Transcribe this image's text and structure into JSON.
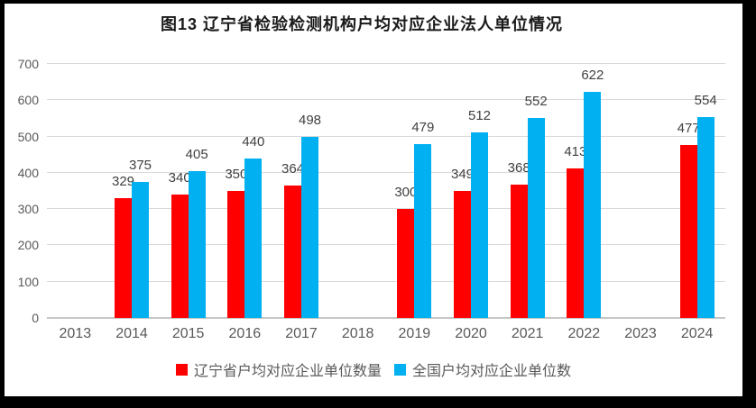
{
  "title": "图13 辽宁省检验检测机构户均对应企业法人单位情况",
  "colors": {
    "liaoning_bar": "#FF0000",
    "national_bar": "#00B0F0",
    "gridline": "#D9D9D9",
    "axis_line": "#C6C6C6",
    "tick_text": "#595959",
    "data_label_text": "#404040",
    "title_text": "#1a1a1a",
    "frame_border": "#000000"
  },
  "chart_data": {
    "type": "bar",
    "title": "图13 辽宁省检验检测机构户均对应企业法人单位情况",
    "categories": [
      "2013",
      "2014",
      "2015",
      "2016",
      "2017",
      "2018",
      "2019",
      "2020",
      "2021",
      "2022",
      "2023",
      "2024"
    ],
    "series": [
      {
        "name": "辽宁省户均对应企业单位数量",
        "color": "#FF0000",
        "values": [
          null,
          329,
          340,
          350,
          364,
          null,
          300,
          349,
          368,
          413,
          null,
          477
        ]
      },
      {
        "name": "全国户均对应企业单位数",
        "color": "#00B0F0",
        "values": [
          null,
          375,
          405,
          440,
          498,
          null,
          479,
          512,
          552,
          622,
          null,
          554
        ]
      }
    ],
    "xlabel": "",
    "ylabel": "",
    "ylim": [
      0,
      700
    ],
    "yticks": [
      0,
      100,
      200,
      300,
      400,
      500,
      600,
      700
    ],
    "grid": true,
    "data_labels": true,
    "legend_position": "bottom"
  }
}
